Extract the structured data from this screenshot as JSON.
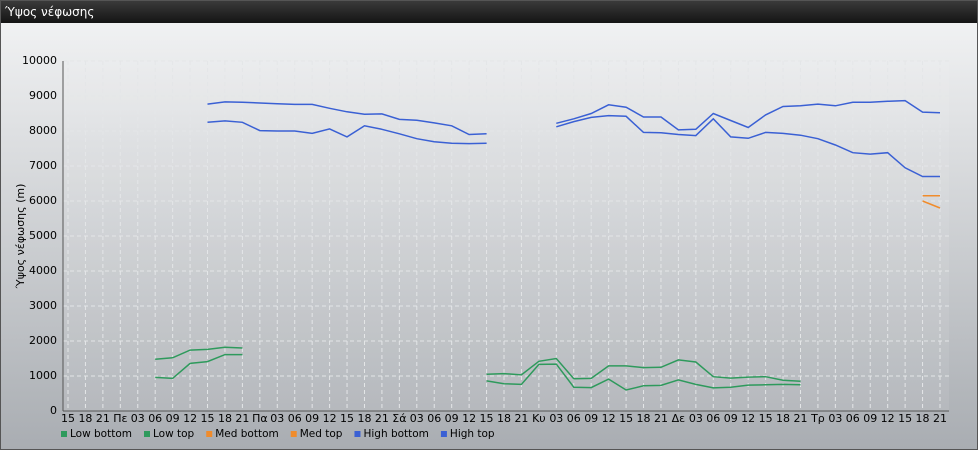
{
  "window_title": "Ύψος νέφωσης",
  "chart_data": {
    "type": "line",
    "y_label": "Ύψος νέφωσης (m)",
    "categories": [
      "15",
      "18",
      "21",
      "Πε",
      "03",
      "06",
      "09",
      "12",
      "15",
      "18",
      "21",
      "Πα",
      "03",
      "06",
      "09",
      "12",
      "15",
      "18",
      "21",
      "Σά",
      "03",
      "06",
      "09",
      "12",
      "15",
      "18",
      "21",
      "Κυ",
      "03",
      "06",
      "09",
      "12",
      "15",
      "18",
      "21",
      "Δε",
      "03",
      "06",
      "09",
      "12",
      "15",
      "18",
      "21",
      "Τρ",
      "03",
      "06",
      "09",
      "12",
      "15",
      "18",
      "21"
    ],
    "ylim": [
      0,
      10000
    ],
    "yticks": [
      0,
      1000,
      2000,
      3000,
      4000,
      5000,
      6000,
      7000,
      8000,
      9000,
      10000
    ],
    "grid": true,
    "series": [
      {
        "name": "Low bottom",
        "color": "#2e9a5c",
        "values": [
          null,
          null,
          null,
          null,
          null,
          960,
          930,
          1360,
          1410,
          1610,
          1610,
          null,
          null,
          null,
          null,
          null,
          null,
          null,
          null,
          null,
          null,
          null,
          null,
          null,
          860,
          780,
          760,
          1330,
          1340,
          680,
          670,
          910,
          600,
          720,
          730,
          890,
          760,
          660,
          680,
          740,
          750,
          760,
          750,
          null,
          null,
          null,
          null,
          null,
          null,
          null,
          null
        ]
      },
      {
        "name": "Low top",
        "color": "#2e9a5c",
        "values": [
          null,
          null,
          null,
          null,
          null,
          1480,
          1520,
          1740,
          1760,
          1820,
          1800,
          null,
          null,
          null,
          null,
          null,
          null,
          null,
          null,
          null,
          null,
          null,
          null,
          null,
          1050,
          1070,
          1030,
          1420,
          1500,
          920,
          930,
          1290,
          1290,
          1240,
          1250,
          1460,
          1400,
          980,
          940,
          970,
          980,
          880,
          850,
          null,
          null,
          null,
          null,
          null,
          null,
          null,
          null
        ]
      },
      {
        "name": "Med bottom",
        "color": "#f08c2c",
        "values": [
          null,
          null,
          null,
          null,
          null,
          null,
          null,
          null,
          null,
          null,
          null,
          null,
          null,
          null,
          null,
          null,
          null,
          null,
          null,
          null,
          null,
          null,
          null,
          null,
          null,
          null,
          null,
          null,
          null,
          null,
          null,
          null,
          null,
          null,
          null,
          null,
          null,
          null,
          null,
          null,
          null,
          null,
          null,
          null,
          null,
          null,
          null,
          null,
          null,
          6000,
          5800
        ]
      },
      {
        "name": "Med top",
        "color": "#f08c2c",
        "values": [
          null,
          null,
          null,
          null,
          null,
          null,
          null,
          null,
          null,
          null,
          null,
          null,
          null,
          null,
          null,
          null,
          null,
          null,
          null,
          null,
          null,
          null,
          null,
          null,
          null,
          null,
          null,
          null,
          null,
          null,
          null,
          null,
          null,
          null,
          null,
          null,
          null,
          null,
          null,
          null,
          null,
          null,
          null,
          null,
          null,
          null,
          null,
          null,
          null,
          6150,
          6150
        ]
      },
      {
        "name": "High bottom",
        "color": "#3a60d4",
        "values": [
          null,
          null,
          null,
          null,
          null,
          null,
          null,
          null,
          8250,
          8290,
          8250,
          8010,
          8000,
          8000,
          7930,
          8060,
          7830,
          8150,
          8050,
          7920,
          7780,
          7690,
          7650,
          7640,
          7650,
          null,
          null,
          null,
          8120,
          8270,
          8390,
          8440,
          8420,
          7960,
          7950,
          7900,
          7870,
          8350,
          7830,
          7790,
          7960,
          7930,
          7880,
          7780,
          7600,
          7380,
          7340,
          7380,
          6950,
          6700,
          6700
        ]
      },
      {
        "name": "High top",
        "color": "#3a60d4",
        "values": [
          null,
          null,
          null,
          null,
          null,
          null,
          null,
          null,
          8770,
          8830,
          8820,
          8800,
          8780,
          8760,
          8760,
          8650,
          8550,
          8480,
          8490,
          8330,
          8310,
          8230,
          8150,
          7900,
          7920,
          null,
          null,
          null,
          8220,
          8350,
          8500,
          8750,
          8680,
          8400,
          8400,
          8030,
          8050,
          8500,
          8300,
          8100,
          8460,
          8700,
          8720,
          8770,
          8720,
          8820,
          8820,
          8850,
          8870,
          8540,
          8520
        ]
      }
    ]
  }
}
